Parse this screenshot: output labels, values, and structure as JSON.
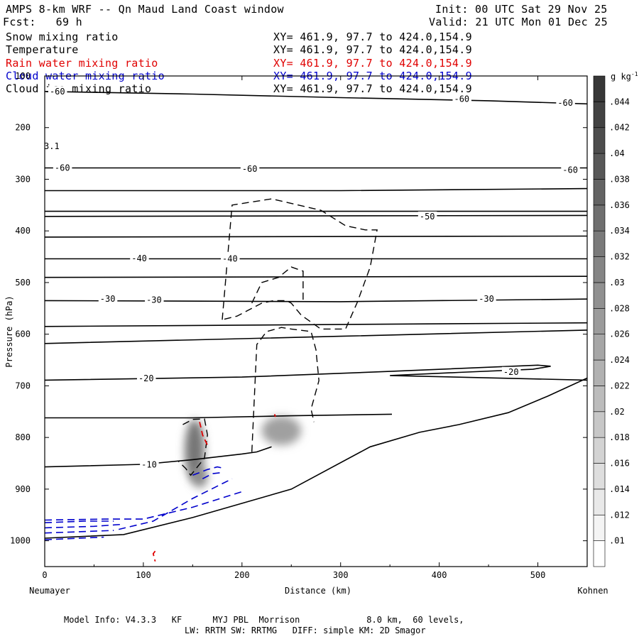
{
  "header": {
    "title": "AMPS 8-km WRF -- Qn Maud Land Coast window",
    "init": "Init: 00 UTC Sat 29 Nov 25",
    "fcst": "Fcst:   69 h",
    "valid": "Valid: 21 UTC Mon 01 Dec 25"
  },
  "fields": [
    {
      "name": "Snow mixing ratio",
      "xy": "XY= 461.9, 97.7 to 424.0,154.9",
      "color": "#000000"
    },
    {
      "name": "Temperature",
      "xy": "XY= 461.9, 97.7 to 424.0,154.9",
      "color": "#000000"
    },
    {
      "name": "Rain water mixing ratio",
      "xy": "XY= 461.9, 97.7 to 424.0,154.9",
      "color": "#e00000"
    },
    {
      "name": "Cloud water mixing ratio",
      "xy": "XY= 461.9, 97.7 to 424.0,154.9",
      "color": "#0000cc"
    },
    {
      "name": "Cloud ice mixing ratio",
      "xy": "XY= 461.9, 97.7 to 424.0,154.9",
      "color": "#000000"
    }
  ],
  "footer": {
    "line1": "Model Info: V4.3.3   KF      MYJ PBL  Morrison             8.0 km,  60 levels,",
    "line2": "LW: RRTM SW: RRTMG   DIFF: simple KM: 2D Smagor"
  },
  "chart_data": {
    "type": "cross-section",
    "xlabel": "Distance (km)",
    "ylabel": "Pressure (hPa)",
    "x_start_label": "Neumayer",
    "x_end_label": "Kohnen",
    "xlim": [
      0,
      550
    ],
    "ylim": [
      100,
      1050
    ],
    "y_scale": "linear",
    "x_ticks": [
      0,
      100,
      200,
      300,
      400,
      500
    ],
    "y_ticks": [
      100,
      200,
      300,
      400,
      500,
      600,
      700,
      800,
      900,
      1000
    ],
    "y_tick_labels": [
      "100",
      "200",
      "300",
      "400",
      "500",
      "600",
      "700",
      "800",
      "900",
      "1000"
    ],
    "colorbar": {
      "unit": "g kg",
      "unit_exponent": "-1",
      "levels": [
        ".01",
        ".012",
        ".014",
        ".016",
        ".018",
        ".02",
        ".022",
        ".024",
        ".026",
        ".028",
        ".03",
        ".032",
        ".034",
        ".036",
        ".038",
        ".04",
        ".042",
        ".044"
      ]
    },
    "stray_label": "3.1",
    "temperature_contours": [
      {
        "points": [
          [
            0,
            130
          ],
          [
            150,
            135
          ],
          [
            300,
            142
          ],
          [
            450,
            148
          ],
          [
            550,
            154
          ]
        ]
      },
      {
        "points": [
          [
            0,
            278
          ],
          [
            550,
            278
          ]
        ]
      },
      {
        "points": [
          [
            0,
            322
          ],
          [
            300,
            322
          ],
          [
            550,
            318
          ]
        ]
      },
      {
        "points": [
          [
            0,
            362
          ],
          [
            550,
            362
          ]
        ]
      },
      {
        "points": [
          [
            0,
            372
          ],
          [
            550,
            370
          ]
        ]
      },
      {
        "points": [
          [
            0,
            412
          ],
          [
            550,
            410
          ]
        ]
      },
      {
        "points": [
          [
            0,
            454
          ],
          [
            550,
            454
          ]
        ]
      },
      {
        "points": [
          [
            0,
            490
          ],
          [
            550,
            488
          ]
        ]
      },
      {
        "points": [
          [
            0,
            535
          ],
          [
            300,
            537
          ],
          [
            550,
            532
          ]
        ]
      },
      {
        "points": [
          [
            0,
            585
          ],
          [
            550,
            578
          ]
        ]
      },
      {
        "points": [
          [
            0,
            618
          ],
          [
            300,
            604
          ],
          [
            550,
            592
          ]
        ]
      },
      {
        "points": [
          [
            0,
            689
          ],
          [
            200,
            683
          ],
          [
            350,
            672
          ],
          [
            500,
            660
          ],
          [
            513,
            662
          ],
          [
            495,
            668
          ],
          [
            420,
            674
          ],
          [
            350,
            680
          ],
          [
            550,
            689
          ]
        ]
      },
      {
        "points": [
          [
            0,
            762
          ],
          [
            150,
            762
          ],
          [
            250,
            758
          ],
          [
            352,
            755
          ]
        ]
      },
      {
        "points": [
          [
            0,
            857
          ],
          [
            100,
            852
          ],
          [
            150,
            843
          ],
          [
            200,
            832
          ],
          [
            215,
            828
          ],
          [
            230,
            818
          ]
        ]
      },
      {
        "points": [
          [
            0,
            995
          ],
          [
            80,
            988
          ],
          [
            150,
            955
          ],
          [
            250,
            900
          ],
          [
            330,
            818
          ],
          [
            380,
            790
          ],
          [
            420,
            775
          ],
          [
            470,
            752
          ],
          [
            510,
            720
          ],
          [
            550,
            685
          ]
        ]
      }
    ],
    "temperature_labels": [
      {
        "x": 5,
        "y": 130,
        "text": "-60"
      },
      {
        "x": 415,
        "y": 145,
        "text": "-60"
      },
      {
        "x": 520,
        "y": 152,
        "text": "-60"
      },
      {
        "x": 10,
        "y": 278,
        "text": "-60"
      },
      {
        "x": 200,
        "y": 280,
        "text": "-60"
      },
      {
        "x": 525,
        "y": 282,
        "text": "-60"
      },
      {
        "x": 380,
        "y": 372,
        "text": "-50"
      },
      {
        "x": 88,
        "y": 453,
        "text": "-40"
      },
      {
        "x": 180,
        "y": 454,
        "text": "-40"
      },
      {
        "x": 56,
        "y": 532,
        "text": "-30"
      },
      {
        "x": 103,
        "y": 534,
        "text": "-30"
      },
      {
        "x": 440,
        "y": 532,
        "text": "-30"
      },
      {
        "x": 95,
        "y": 686,
        "text": "-20"
      },
      {
        "x": 465,
        "y": 673,
        "text": "-20"
      },
      {
        "x": 98,
        "y": 853,
        "text": "-10"
      }
    ],
    "ice_contours": [
      {
        "points": [
          [
            180,
            572
          ],
          [
            190,
            350
          ],
          [
            230,
            338
          ],
          [
            280,
            360
          ],
          [
            305,
            390
          ],
          [
            325,
            398
          ],
          [
            337,
            398
          ],
          [
            330,
            470
          ],
          [
            317,
            538
          ],
          [
            305,
            590
          ],
          [
            280,
            590
          ],
          [
            260,
            563
          ],
          [
            250,
            540
          ],
          [
            245,
            535
          ],
          [
            232,
            535
          ],
          [
            220,
            540
          ],
          [
            195,
            565
          ],
          [
            180,
            572
          ]
        ]
      },
      {
        "points": [
          [
            210,
            540
          ],
          [
            220,
            500
          ],
          [
            237,
            490
          ],
          [
            250,
            470
          ],
          [
            262,
            478
          ],
          [
            262,
            535
          ]
        ]
      },
      {
        "points": [
          [
            210,
            828
          ],
          [
            215,
            620
          ],
          [
            225,
            595
          ],
          [
            240,
            587
          ],
          [
            250,
            590
          ],
          [
            270,
            595
          ],
          [
            275,
            630
          ],
          [
            278,
            690
          ],
          [
            270,
            745
          ],
          [
            273,
            770
          ]
        ]
      },
      {
        "points": [
          [
            140,
            775
          ],
          [
            150,
            765
          ],
          [
            162,
            764
          ],
          [
            165,
            795
          ],
          [
            162,
            840
          ],
          [
            148,
            873
          ],
          [
            143,
            860
          ],
          [
            135,
            845
          ]
        ]
      }
    ],
    "rain_contours": [
      {
        "points": [
          [
            157,
            770
          ],
          [
            158,
            778
          ],
          [
            160,
            795
          ],
          [
            165,
            815
          ]
        ]
      },
      {
        "points": [
          [
            112,
            1020
          ],
          [
            110,
            1025
          ],
          [
            112,
            1040
          ]
        ]
      },
      {
        "points": [
          [
            233,
            755
          ],
          [
            234,
            760
          ]
        ]
      }
    ],
    "cloud_water_contours": [
      {
        "points": [
          [
            0,
            960
          ],
          [
            60,
            958
          ],
          [
            100,
            958
          ],
          [
            150,
            935
          ],
          [
            200,
            905
          ]
        ]
      },
      {
        "points": [
          [
            0,
            965
          ],
          [
            40,
            962
          ],
          [
            70,
            962
          ]
        ]
      },
      {
        "points": [
          [
            0,
            975
          ],
          [
            50,
            972
          ],
          [
            80,
            968
          ]
        ]
      },
      {
        "points": [
          [
            0,
            985
          ],
          [
            70,
            980
          ]
        ]
      },
      {
        "points": [
          [
            0,
            998
          ],
          [
            60,
            993
          ]
        ]
      },
      {
        "points": [
          [
            150,
            873
          ],
          [
            165,
            862
          ],
          [
            175,
            857
          ],
          [
            182,
            860
          ]
        ]
      },
      {
        "points": [
          [
            160,
            880
          ],
          [
            170,
            870
          ],
          [
            180,
            868
          ]
        ]
      },
      {
        "points": [
          [
            75,
            978
          ],
          [
            110,
            962
          ],
          [
            150,
            918
          ],
          [
            190,
            880
          ]
        ]
      }
    ],
    "snow_shading": [
      {
        "x": 240,
        "y": 787,
        "rx": 20,
        "ry": 28,
        "value": 0.026
      },
      {
        "x": 152,
        "y": 825,
        "rx": 10,
        "ry": 60,
        "value": 0.034
      },
      {
        "x": 157,
        "y": 877,
        "rx": 8,
        "ry": 20,
        "value": 0.03
      }
    ]
  }
}
